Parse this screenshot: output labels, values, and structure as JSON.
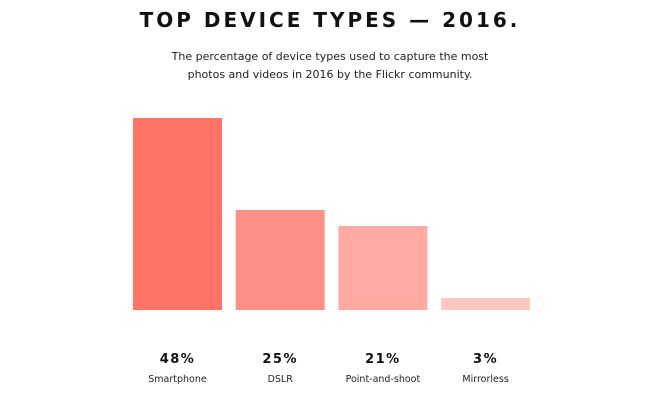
{
  "title": "TOP DEVICE TYPES — 2016.",
  "subtitle": "The percentage of device types used to capture the most photos and videos in 2016 by the Flickr community.",
  "chart_data": {
    "type": "bar",
    "title": "TOP DEVICE TYPES — 2016.",
    "subtitle": "The percentage of device types used to capture the most photos and videos in 2016 by the Flickr community.",
    "categories": [
      "Smartphone",
      "DSLR",
      "Point-and-shoot",
      "Mirrorless"
    ],
    "values": [
      48,
      25,
      21,
      3
    ],
    "value_labels": [
      "48%",
      "25%",
      "21%",
      "3%"
    ],
    "unit": "%",
    "colors": [
      "#ff7467",
      "#ff9086",
      "#ffaba4",
      "#ffc7c2"
    ],
    "grid": false,
    "axes_visible": false
  }
}
